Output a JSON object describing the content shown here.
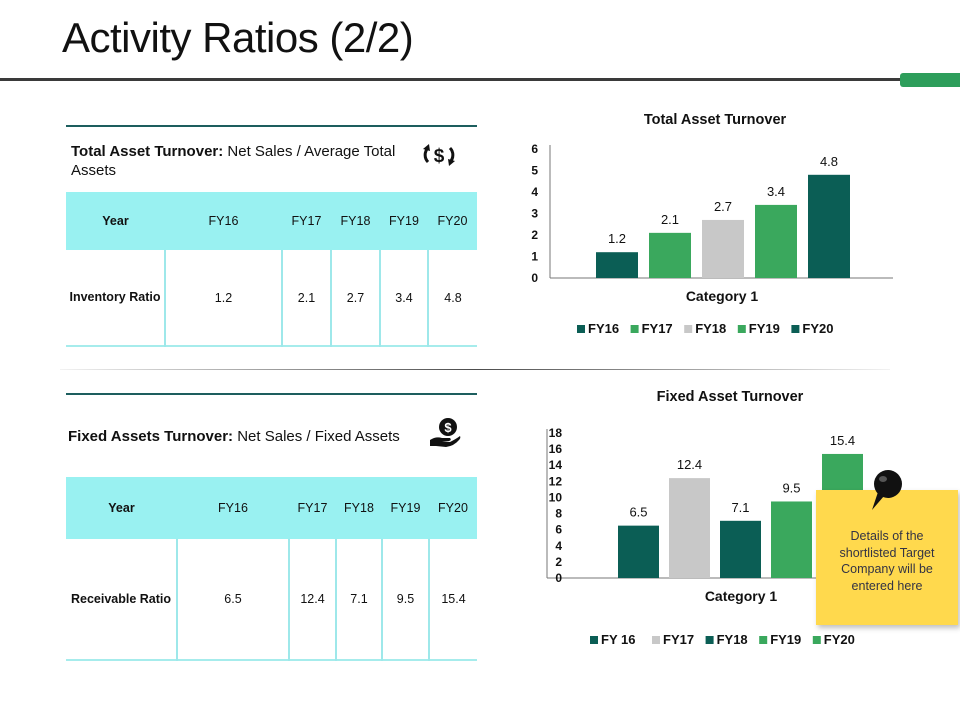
{
  "page": {
    "title": "Activity Ratios (2/2)"
  },
  "colors": {
    "dark_teal": "#0b5e55",
    "green": "#3aa85d",
    "grey": "#c8c8c8",
    "header_cyan": "#99f1f1",
    "accent_green": "#2e9e5b",
    "note_yellow": "#ffd94d"
  },
  "section1": {
    "formula_label": "Total Asset Turnover:",
    "formula_text": "Net Sales / Average Total Assets",
    "icon": "dollar-exchange-icon",
    "table": {
      "header": [
        "Year",
        "FY16",
        "FY17",
        "FY18",
        "FY19",
        "FY20"
      ],
      "row_label": "Inventory Ratio",
      "values": [
        "1.2",
        "2.1",
        "2.7",
        "3.4",
        "4.8"
      ]
    }
  },
  "section2": {
    "formula_label": "Fixed Assets Turnover:",
    "formula_text": "Net Sales / Fixed Assets",
    "icon": "hand-money-icon",
    "table": {
      "header": [
        "Year",
        "FY16",
        "FY17",
        "FY18",
        "FY19",
        "FY20"
      ],
      "row_label": "Receivable Ratio",
      "values": [
        "6.5",
        "12.4",
        "7.1",
        "9.5",
        "15.4"
      ]
    }
  },
  "note": {
    "text": "Details of the shortlisted Target Company will be entered here",
    "icon": "pushpin-icon"
  },
  "chart_data": [
    {
      "type": "bar",
      "title": "Total Asset Turnover",
      "categories": [
        "Category 1"
      ],
      "xlabel": "Category 1",
      "ylabel": "",
      "ylim": [
        0,
        6
      ],
      "yticks": [
        0,
        1,
        2,
        3,
        4,
        5,
        6
      ],
      "grid": false,
      "legend": "bottom",
      "series": [
        {
          "name": "FY16",
          "values": [
            1.2
          ],
          "color": "#0b5e55"
        },
        {
          "name": "FY17",
          "values": [
            2.1
          ],
          "color": "#3aa85d"
        },
        {
          "name": "FY18",
          "values": [
            2.7
          ],
          "color": "#c8c8c8"
        },
        {
          "name": "FY19",
          "values": [
            3.4
          ],
          "color": "#3aa85d"
        },
        {
          "name": "FY20",
          "values": [
            4.8
          ],
          "color": "#0b5e55"
        }
      ]
    },
    {
      "type": "bar",
      "title": "Fixed Asset Turnover",
      "categories": [
        "Category 1"
      ],
      "xlabel": "Category 1",
      "ylabel": "",
      "ylim": [
        0,
        18
      ],
      "yticks": [
        0,
        2,
        4,
        6,
        8,
        10,
        12,
        14,
        16,
        18
      ],
      "grid": false,
      "legend": "bottom",
      "series": [
        {
          "name": "FY 16",
          "values": [
            6.5
          ],
          "color": "#0b5e55"
        },
        {
          "name": "FY17",
          "values": [
            12.4
          ],
          "color": "#c8c8c8"
        },
        {
          "name": "FY18",
          "values": [
            7.1
          ],
          "color": "#0b5e55"
        },
        {
          "name": "FY19",
          "values": [
            9.5
          ],
          "color": "#3aa85d"
        },
        {
          "name": "FY20",
          "values": [
            15.4
          ],
          "color": "#3aa85d"
        }
      ]
    }
  ]
}
